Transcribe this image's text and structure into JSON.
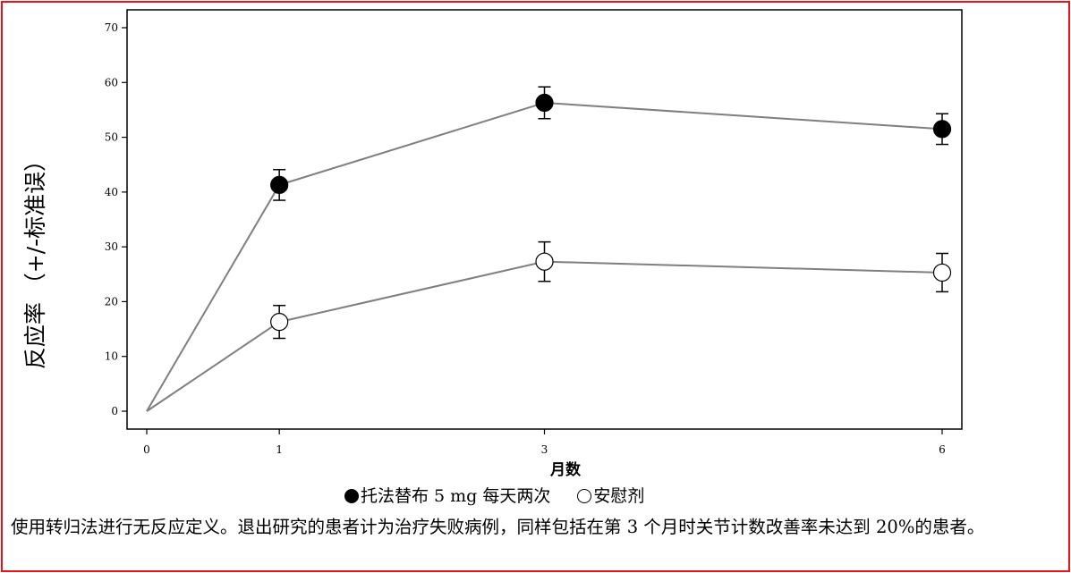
{
  "chart_data": {
    "type": "line",
    "xlabel": "月数",
    "ylabel": "反应率 （+/-标准误）",
    "x": [
      0,
      1,
      3,
      6
    ],
    "xticks": [
      "0",
      "1",
      "3",
      "6"
    ],
    "yticks": [
      "0",
      "10",
      "20",
      "30",
      "40",
      "50",
      "60",
      "70"
    ],
    "xlim": [
      0,
      6
    ],
    "ylim": [
      0,
      70
    ],
    "grid": false,
    "legend_position": "bottom",
    "series": [
      {
        "name": "托法替布 5 mg 每天两次",
        "marker": "filled-circle",
        "color": "#000000",
        "values": [
          0,
          41.3,
          56.3,
          51.5
        ],
        "error": [
          0,
          2.8,
          2.9,
          2.8
        ]
      },
      {
        "name": "安慰剂",
        "marker": "open-circle",
        "color": "#ffffff",
        "values": [
          0,
          16.3,
          27.3,
          25.3
        ],
        "error": [
          0,
          3.0,
          3.6,
          3.5
        ]
      }
    ]
  },
  "caption": "使用转归法进行无反应定义。退出研究的患者计为治疗失败病例，同样包括在第 3 个月时关节计数改善率未达到 20%的患者。",
  "colors": {
    "frame": "#e8141b",
    "line": "#7f7f7f",
    "axis": "#000000"
  }
}
